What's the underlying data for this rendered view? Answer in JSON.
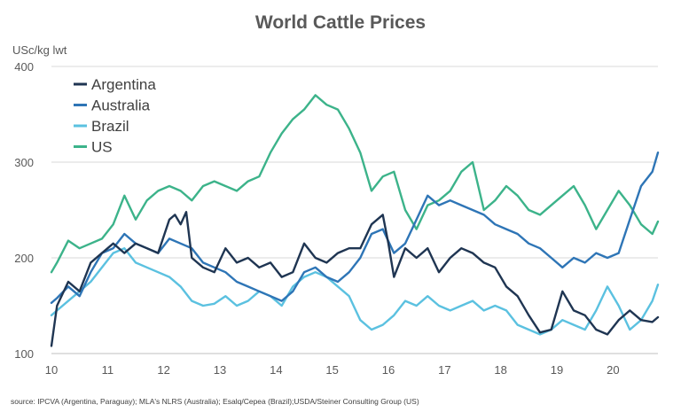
{
  "title": "World Cattle Prices",
  "unit_label": "USc/kg lwt",
  "source": "source: IPCVA (Argentina, Paraguay); MLA's NLRS (Australia); Esalq/Cepea (Brazil);USDA/Steiner Consulting Group (US)",
  "colors": {
    "Argentina": "#1f3552",
    "Australia": "#2e75b6",
    "Brazil": "#5bc1e0",
    "US": "#3cb38a",
    "grid": "#d9d9d9",
    "axis": "#bfbfbf"
  },
  "chart_data": {
    "type": "line",
    "title": "World Cattle Prices",
    "ylabel": "USc/kg lwt",
    "xlabel": "",
    "xlim": [
      10,
      20.8
    ],
    "ylim": [
      100,
      400
    ],
    "x_ticks": [
      10,
      11,
      12,
      13,
      14,
      15,
      16,
      17,
      18,
      19,
      20
    ],
    "y_ticks": [
      100,
      200,
      300,
      400
    ],
    "grid": "horizontal",
    "legend": "top-left",
    "series": [
      {
        "name": "Argentina",
        "x": [
          10,
          10.1,
          10.3,
          10.5,
          10.7,
          10.9,
          11.1,
          11.3,
          11.5,
          11.7,
          11.9,
          12.1,
          12.2,
          12.3,
          12.4,
          12.5,
          12.7,
          12.9,
          13.1,
          13.3,
          13.5,
          13.7,
          13.9,
          14.1,
          14.3,
          14.5,
          14.7,
          14.9,
          15.1,
          15.3,
          15.5,
          15.7,
          15.9,
          16,
          16.1,
          16.3,
          16.5,
          16.7,
          16.9,
          17.1,
          17.3,
          17.5,
          17.7,
          17.9,
          18.1,
          18.3,
          18.5,
          18.7,
          18.9,
          19.1,
          19.3,
          19.5,
          19.7,
          19.9,
          20.1,
          20.3,
          20.5,
          20.7,
          20.8
        ],
        "values": [
          108,
          150,
          175,
          165,
          195,
          205,
          215,
          205,
          215,
          210,
          205,
          240,
          245,
          235,
          248,
          200,
          190,
          185,
          210,
          195,
          200,
          190,
          195,
          180,
          185,
          215,
          200,
          195,
          205,
          210,
          210,
          235,
          245,
          215,
          180,
          210,
          200,
          210,
          185,
          200,
          210,
          205,
          195,
          190,
          170,
          160,
          140,
          122,
          125,
          165,
          145,
          140,
          125,
          120,
          135,
          145,
          135,
          133,
          138
        ]
      },
      {
        "name": "Australia",
        "x": [
          10,
          10.1,
          10.3,
          10.5,
          10.7,
          10.9,
          11.1,
          11.3,
          11.5,
          11.7,
          11.9,
          12.1,
          12.3,
          12.5,
          12.7,
          12.9,
          13.1,
          13.3,
          13.5,
          13.7,
          13.9,
          14.1,
          14.3,
          14.5,
          14.7,
          14.9,
          15.1,
          15.3,
          15.5,
          15.7,
          15.9,
          16.1,
          16.3,
          16.5,
          16.7,
          16.9,
          17.1,
          17.3,
          17.5,
          17.7,
          17.9,
          18.1,
          18.3,
          18.5,
          18.7,
          18.9,
          19.1,
          19.3,
          19.5,
          19.7,
          19.9,
          20.1,
          20.3,
          20.5,
          20.7,
          20.8
        ],
        "values": [
          153,
          158,
          170,
          160,
          185,
          205,
          210,
          225,
          215,
          210,
          205,
          220,
          215,
          210,
          195,
          190,
          185,
          175,
          170,
          165,
          160,
          155,
          165,
          185,
          190,
          180,
          175,
          185,
          200,
          225,
          230,
          205,
          215,
          240,
          265,
          255,
          260,
          255,
          250,
          245,
          235,
          230,
          225,
          215,
          210,
          200,
          190,
          200,
          195,
          205,
          200,
          205,
          240,
          275,
          290,
          310
        ]
      },
      {
        "name": "Brazil",
        "x": [
          10,
          10.1,
          10.3,
          10.5,
          10.7,
          10.9,
          11.1,
          11.3,
          11.5,
          11.7,
          11.9,
          12.1,
          12.3,
          12.5,
          12.7,
          12.9,
          13.1,
          13.3,
          13.5,
          13.7,
          13.9,
          14.1,
          14.3,
          14.5,
          14.7,
          14.9,
          15.1,
          15.3,
          15.5,
          15.7,
          15.9,
          16.1,
          16.3,
          16.5,
          16.7,
          16.9,
          17.1,
          17.3,
          17.5,
          17.7,
          17.9,
          18.1,
          18.3,
          18.5,
          18.7,
          18.9,
          19.1,
          19.3,
          19.5,
          19.7,
          19.9,
          20.1,
          20.3,
          20.5,
          20.7,
          20.8
        ],
        "values": [
          140,
          145,
          155,
          165,
          175,
          190,
          205,
          210,
          195,
          190,
          185,
          180,
          170,
          155,
          150,
          152,
          160,
          150,
          155,
          165,
          160,
          150,
          170,
          180,
          185,
          180,
          170,
          160,
          135,
          125,
          130,
          140,
          155,
          150,
          160,
          150,
          145,
          150,
          155,
          145,
          150,
          145,
          130,
          125,
          120,
          125,
          135,
          130,
          125,
          145,
          170,
          150,
          125,
          135,
          155,
          172
        ]
      },
      {
        "name": "US",
        "x": [
          10,
          10.1,
          10.3,
          10.5,
          10.7,
          10.9,
          11.1,
          11.3,
          11.5,
          11.7,
          11.9,
          12.1,
          12.3,
          12.5,
          12.7,
          12.9,
          13.1,
          13.3,
          13.5,
          13.7,
          13.9,
          14.1,
          14.3,
          14.5,
          14.7,
          14.9,
          15.1,
          15.3,
          15.5,
          15.7,
          15.9,
          16.1,
          16.3,
          16.5,
          16.7,
          16.9,
          17.1,
          17.3,
          17.5,
          17.7,
          17.9,
          18.1,
          18.3,
          18.5,
          18.7,
          18.9,
          19.1,
          19.3,
          19.5,
          19.7,
          19.9,
          20.1,
          20.3,
          20.5,
          20.7,
          20.8
        ],
        "values": [
          185,
          195,
          218,
          210,
          215,
          220,
          235,
          265,
          240,
          260,
          270,
          275,
          270,
          260,
          275,
          280,
          275,
          270,
          280,
          285,
          310,
          330,
          345,
          355,
          370,
          360,
          355,
          335,
          310,
          270,
          285,
          290,
          250,
          230,
          255,
          260,
          270,
          290,
          300,
          250,
          260,
          275,
          265,
          250,
          245,
          255,
          265,
          275,
          255,
          230,
          250,
          270,
          255,
          235,
          225,
          238
        ]
      }
    ]
  }
}
